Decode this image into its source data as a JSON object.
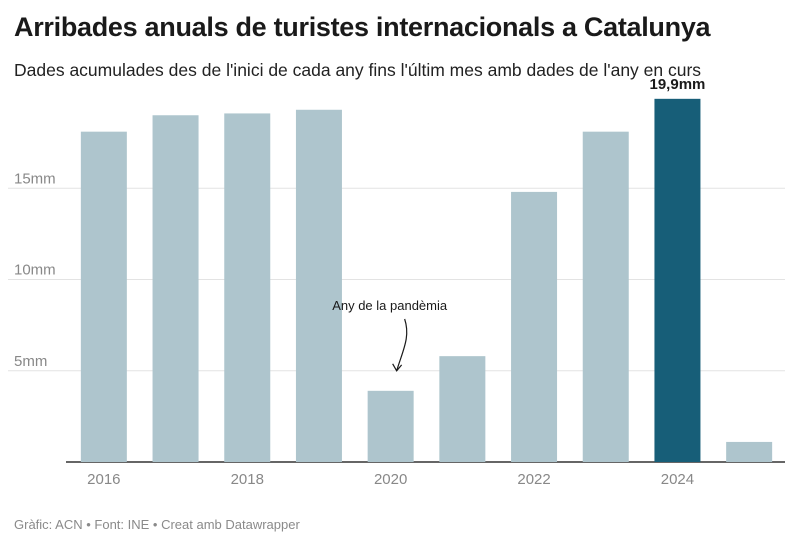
{
  "header": {
    "title": "Arribades anuals de turistes internacionals a Catalunya",
    "subtitle": "Dades acumulades des de l'inici de cada any fins l'últim mes amb dades de l'any en curs"
  },
  "footer": {
    "text": "Gràfic: ACN • Font: INE • Creat amb Datawrapper"
  },
  "colors": {
    "bar": "#aec5cd",
    "highlight": "#175e78",
    "grid": "#e3e3e3",
    "axis": "#333333"
  },
  "chart_data": {
    "type": "bar",
    "categories": [
      "2016",
      "2017",
      "2018",
      "2019",
      "2020",
      "2021",
      "2022",
      "2023",
      "2024",
      "2025"
    ],
    "values": [
      18.1,
      19.0,
      19.1,
      19.3,
      3.9,
      5.8,
      14.8,
      18.1,
      19.9,
      1.1
    ],
    "x_tick_labels": [
      "2016",
      "2018",
      "2020",
      "2022",
      "2024"
    ],
    "y_ticks": [
      {
        "value": 5,
        "label": "5mm"
      },
      {
        "value": 10,
        "label": "10mm"
      },
      {
        "value": 15,
        "label": "15mm"
      }
    ],
    "ylim": [
      0,
      20
    ],
    "highlight_category": "2024",
    "highlight_label": "19,9mm",
    "annotation": {
      "text": "Any de la pandèmia",
      "category": "2020"
    },
    "grid": true
  }
}
